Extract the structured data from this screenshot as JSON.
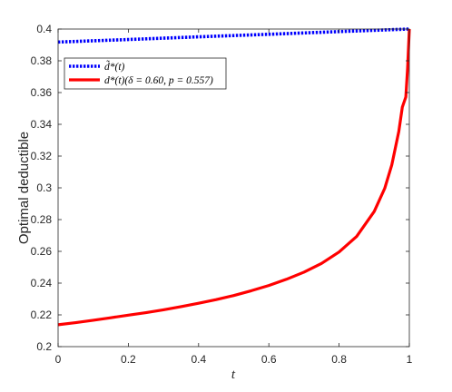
{
  "chart_data": {
    "type": "line",
    "title": "",
    "xlabel": "t",
    "ylabel": "Optimal deductible",
    "xlim": [
      0,
      1
    ],
    "ylim": [
      0.2,
      0.4
    ],
    "xticks": [
      0,
      0.2,
      0.4,
      0.6,
      0.8,
      1
    ],
    "xtick_labels": [
      "0",
      "0.2",
      "0.4",
      "0.6",
      "0.8",
      "1"
    ],
    "yticks": [
      0.2,
      0.22,
      0.24,
      0.26,
      0.28,
      0.3,
      0.32,
      0.34,
      0.36,
      0.38,
      0.4
    ],
    "ytick_labels": [
      "0.2",
      "0.22",
      "0.24",
      "0.26",
      "0.28",
      "0.3",
      "0.32",
      "0.34",
      "0.36",
      "0.38",
      "0.4"
    ],
    "grid": false,
    "legend_position": "top-left",
    "series": [
      {
        "name": "d̃*(t)",
        "color": "#0000ff",
        "style": "dotted",
        "x": [
          0,
          0.2,
          0.4,
          0.6,
          0.8,
          1.0
        ],
        "y": [
          0.3918,
          0.3934,
          0.3951,
          0.3967,
          0.3984,
          0.4
        ]
      },
      {
        "name": "d*(t)(δ = 0.60, p = 0.557)",
        "color": "#ff0000",
        "style": "solid",
        "x": [
          0,
          0.05,
          0.1,
          0.15,
          0.2,
          0.25,
          0.3,
          0.35,
          0.4,
          0.45,
          0.5,
          0.55,
          0.6,
          0.65,
          0.7,
          0.75,
          0.8,
          0.85,
          0.9,
          0.93,
          0.95,
          0.97,
          0.98,
          0.99,
          0.995,
          1.0
        ],
        "y": [
          0.2138,
          0.2151,
          0.2166,
          0.2182,
          0.2198,
          0.2214,
          0.2232,
          0.2252,
          0.2273,
          0.2296,
          0.2322,
          0.2352,
          0.2385,
          0.2424,
          0.2469,
          0.2524,
          0.2596,
          0.2694,
          0.2851,
          0.2997,
          0.3144,
          0.3355,
          0.3508,
          0.3572,
          0.3752,
          0.4
        ]
      }
    ]
  }
}
